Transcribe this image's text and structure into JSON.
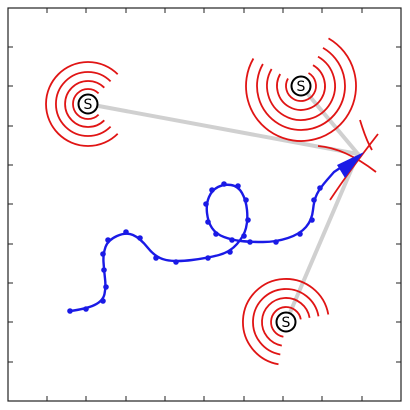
{
  "colors": {
    "frame": "#222222",
    "wave": "#e01414",
    "ray": "#d0d0d0",
    "path": "#1a1ae6",
    "source_stroke": "#000000"
  },
  "sources": [
    {
      "label": "S"
    },
    {
      "label": "S"
    },
    {
      "label": "S"
    }
  ],
  "target_icon": "arrow-head-icon"
}
